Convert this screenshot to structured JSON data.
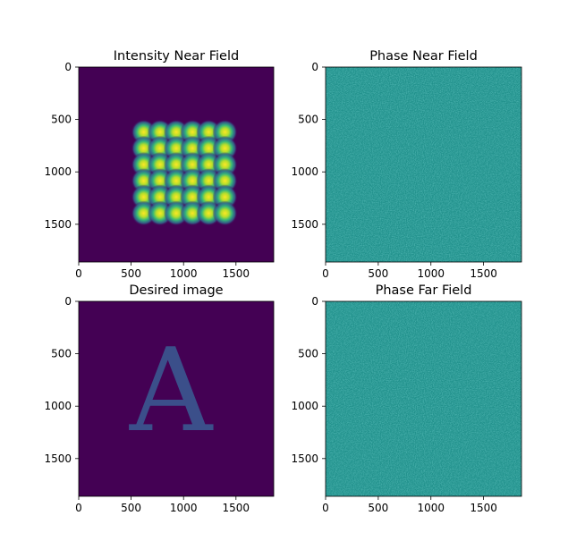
{
  "chart_data": [
    {
      "type": "heatmap",
      "title": "Intensity Near Field",
      "colormap": "viridis",
      "xlim": [
        0,
        1860
      ],
      "ylim": [
        1860,
        0
      ],
      "xticks": [
        0,
        500,
        1000,
        1500
      ],
      "yticks": [
        0,
        500,
        1000,
        1500
      ],
      "content": "spot-array",
      "spots_x": [
        620,
        775,
        930,
        1085,
        1240,
        1395
      ],
      "spots_y": [
        620,
        775,
        930,
        1085,
        1240,
        1395
      ],
      "spot_value_range": [
        0,
        1
      ]
    },
    {
      "type": "heatmap",
      "title": "Phase Near Field",
      "colormap": "viridis",
      "xlim": [
        0,
        1860
      ],
      "ylim": [
        1860,
        0
      ],
      "xticks": [
        0,
        500,
        1000,
        1500
      ],
      "yticks": [
        0,
        500,
        1000,
        1500
      ],
      "content": "noise",
      "mean_level": 0.5
    },
    {
      "type": "heatmap",
      "title": "Desired image",
      "colormap": "viridis",
      "xlim": [
        0,
        1860
      ],
      "ylim": [
        1860,
        0
      ],
      "xticks": [
        0,
        500,
        1000,
        1500
      ],
      "yticks": [
        0,
        500,
        1000,
        1500
      ],
      "content": "letter",
      "letter": "A",
      "letter_level": 0.2
    },
    {
      "type": "heatmap",
      "title": "Phase Far Field",
      "colormap": "viridis",
      "xlim": [
        0,
        1860
      ],
      "ylim": [
        1860,
        0
      ],
      "xticks": [
        0,
        500,
        1000,
        1500
      ],
      "yticks": [
        0,
        500,
        1000,
        1500
      ],
      "content": "noise",
      "mean_level": 0.5
    }
  ],
  "colors": {
    "viridis_low": "#440154",
    "viridis_mid": "#21918c",
    "viridis_high": "#fde725",
    "letter_fill": "#3b4f8a"
  }
}
